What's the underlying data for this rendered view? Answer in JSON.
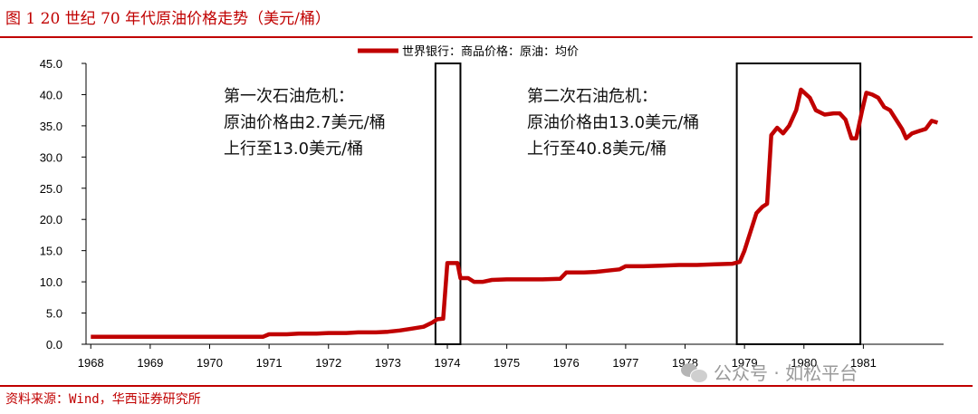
{
  "figure": {
    "title": "图 1  20 世纪 70 年代原油价格走势（美元/桶）",
    "source": "资料来源：Wind，华西证券研究所"
  },
  "watermark": {
    "text": "公众号 · 如松平台",
    "icon": "wechat-icon"
  },
  "colors": {
    "accent": "#c00000",
    "box": "#000000"
  },
  "chart_data": {
    "type": "line",
    "legend": {
      "position": "top",
      "entries": [
        "世界银行：商品价格：原油：均价"
      ]
    },
    "series": [
      {
        "name": "世界银行：商品价格：原油：均价",
        "color": "#c00000",
        "points": [
          [
            1968.0,
            1.2
          ],
          [
            1968.5,
            1.2
          ],
          [
            1969.0,
            1.2
          ],
          [
            1969.5,
            1.2
          ],
          [
            1970.0,
            1.2
          ],
          [
            1970.5,
            1.2
          ],
          [
            1970.9,
            1.2
          ],
          [
            1971.0,
            1.6
          ],
          [
            1971.3,
            1.6
          ],
          [
            1971.5,
            1.7
          ],
          [
            1971.8,
            1.7
          ],
          [
            1972.0,
            1.8
          ],
          [
            1972.3,
            1.8
          ],
          [
            1972.5,
            1.9
          ],
          [
            1972.8,
            1.9
          ],
          [
            1973.0,
            2.0
          ],
          [
            1973.2,
            2.2
          ],
          [
            1973.4,
            2.5
          ],
          [
            1973.6,
            2.8
          ],
          [
            1973.75,
            3.5
          ],
          [
            1973.83,
            4.0
          ],
          [
            1973.93,
            4.1
          ],
          [
            1974.0,
            13.0
          ],
          [
            1974.08,
            13.0
          ],
          [
            1974.17,
            13.0
          ],
          [
            1974.22,
            10.6
          ],
          [
            1974.35,
            10.6
          ],
          [
            1974.45,
            10.0
          ],
          [
            1974.6,
            10.0
          ],
          [
            1974.75,
            10.3
          ],
          [
            1975.0,
            10.4
          ],
          [
            1975.3,
            10.4
          ],
          [
            1975.6,
            10.4
          ],
          [
            1975.9,
            10.5
          ],
          [
            1976.0,
            11.5
          ],
          [
            1976.3,
            11.5
          ],
          [
            1976.5,
            11.6
          ],
          [
            1976.7,
            11.8
          ],
          [
            1976.9,
            12.0
          ],
          [
            1977.0,
            12.5
          ],
          [
            1977.3,
            12.5
          ],
          [
            1977.6,
            12.6
          ],
          [
            1977.9,
            12.7
          ],
          [
            1978.2,
            12.7
          ],
          [
            1978.5,
            12.8
          ],
          [
            1978.8,
            12.9
          ],
          [
            1978.92,
            13.2
          ],
          [
            1979.0,
            15.0
          ],
          [
            1979.1,
            18.0
          ],
          [
            1979.2,
            21.0
          ],
          [
            1979.3,
            22.0
          ],
          [
            1979.38,
            22.5
          ],
          [
            1979.45,
            33.5
          ],
          [
            1979.55,
            34.7
          ],
          [
            1979.65,
            33.8
          ],
          [
            1979.75,
            35.0
          ],
          [
            1979.87,
            37.5
          ],
          [
            1979.95,
            40.8
          ],
          [
            1980.1,
            39.5
          ],
          [
            1980.2,
            37.5
          ],
          [
            1980.35,
            36.8
          ],
          [
            1980.5,
            37.0
          ],
          [
            1980.6,
            37.0
          ],
          [
            1980.7,
            36.0
          ],
          [
            1980.8,
            33.0
          ],
          [
            1980.88,
            33.0
          ],
          [
            1980.98,
            37.5
          ],
          [
            1981.05,
            40.3
          ],
          [
            1981.15,
            40.0
          ],
          [
            1981.25,
            39.5
          ],
          [
            1981.35,
            38.0
          ],
          [
            1981.45,
            37.5
          ],
          [
            1981.55,
            36.0
          ],
          [
            1981.65,
            34.5
          ],
          [
            1981.72,
            33.0
          ],
          [
            1981.82,
            33.8
          ],
          [
            1981.95,
            34.2
          ],
          [
            1982.05,
            34.5
          ],
          [
            1982.15,
            35.8
          ],
          [
            1982.25,
            35.5
          ]
        ]
      }
    ],
    "x_ticks": [
      "1968",
      "1969",
      "1970",
      "1971",
      "1972",
      "1973",
      "1974",
      "1975",
      "1976",
      "1977",
      "1978",
      "1979",
      "1980",
      "1981"
    ],
    "x_tick_values": [
      1968,
      1969,
      1970,
      1971,
      1972,
      1973,
      1974,
      1975,
      1976,
      1977,
      1978,
      1979,
      1980,
      1981
    ],
    "y_ticks": [
      "0.0",
      "5.0",
      "10.0",
      "15.0",
      "20.0",
      "25.0",
      "30.0",
      "35.0",
      "40.0",
      "45.0"
    ],
    "y_tick_values": [
      0,
      5,
      10,
      15,
      20,
      25,
      30,
      35,
      40,
      45
    ],
    "xlim": [
      1967.92,
      1982.35
    ],
    "ylim": [
      0,
      45
    ],
    "grid": false,
    "highlight_boxes": [
      {
        "x0": 1973.8,
        "x1": 1974.22,
        "y0": 0,
        "y1": 45
      },
      {
        "x0": 1978.87,
        "x1": 1980.95,
        "y0": 0,
        "y1": 45
      }
    ],
    "annotations": [
      {
        "id": "crisis-1",
        "lines": [
          "第一次石油危机：",
          "原油价格由2.7美元/桶",
          "上行至13.0美元/桶"
        ]
      },
      {
        "id": "crisis-2",
        "lines": [
          "第二次石油危机：",
          "原油价格由13.0美元/桶",
          "上行至40.8美元/桶"
        ]
      }
    ]
  }
}
